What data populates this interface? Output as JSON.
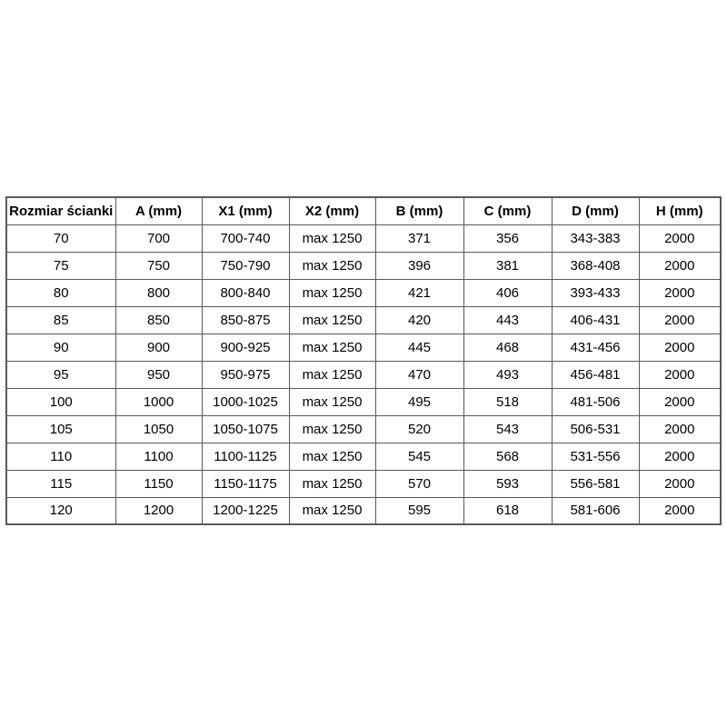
{
  "table": {
    "headers": [
      "Rozmiar ścianki",
      "A (mm)",
      "X1 (mm)",
      "X2 (mm)",
      "B (mm)",
      "C (mm)",
      "D (mm)",
      "H (mm)"
    ],
    "rows": [
      [
        "70",
        "700",
        "700-740",
        "max 1250",
        "371",
        "356",
        "343-383",
        "2000"
      ],
      [
        "75",
        "750",
        "750-790",
        "max 1250",
        "396",
        "381",
        "368-408",
        "2000"
      ],
      [
        "80",
        "800",
        "800-840",
        "max 1250",
        "421",
        "406",
        "393-433",
        "2000"
      ],
      [
        "85",
        "850",
        "850-875",
        "max 1250",
        "420",
        "443",
        "406-431",
        "2000"
      ],
      [
        "90",
        "900",
        "900-925",
        "max 1250",
        "445",
        "468",
        "431-456",
        "2000"
      ],
      [
        "95",
        "950",
        "950-975",
        "max 1250",
        "470",
        "493",
        "456-481",
        "2000"
      ],
      [
        "100",
        "1000",
        "1000-1025",
        "max 1250",
        "495",
        "518",
        "481-506",
        "2000"
      ],
      [
        "105",
        "1050",
        "1050-1075",
        "max 1250",
        "520",
        "543",
        "506-531",
        "2000"
      ],
      [
        "110",
        "1100",
        "1100-1125",
        "max 1250",
        "545",
        "568",
        "531-556",
        "2000"
      ],
      [
        "115",
        "1150",
        "1150-1175",
        "max 1250",
        "570",
        "593",
        "556-581",
        "2000"
      ],
      [
        "120",
        "1200",
        "1200-1225",
        "max 1250",
        "595",
        "618",
        "581-606",
        "2000"
      ]
    ]
  },
  "chart_data": {
    "type": "table",
    "title": "",
    "columns": [
      "Rozmiar ścianki",
      "A (mm)",
      "X1 (mm)",
      "X2 (mm)",
      "B (mm)",
      "C (mm)",
      "D (mm)",
      "H (mm)"
    ],
    "rows": [
      [
        "70",
        "700",
        "700-740",
        "max 1250",
        "371",
        "356",
        "343-383",
        "2000"
      ],
      [
        "75",
        "750",
        "750-790",
        "max 1250",
        "396",
        "381",
        "368-408",
        "2000"
      ],
      [
        "80",
        "800",
        "800-840",
        "max 1250",
        "421",
        "406",
        "393-433",
        "2000"
      ],
      [
        "85",
        "850",
        "850-875",
        "max 1250",
        "420",
        "443",
        "406-431",
        "2000"
      ],
      [
        "90",
        "900",
        "900-925",
        "max 1250",
        "445",
        "468",
        "431-456",
        "2000"
      ],
      [
        "95",
        "950",
        "950-975",
        "max 1250",
        "470",
        "493",
        "456-481",
        "2000"
      ],
      [
        "100",
        "1000",
        "1000-1025",
        "max 1250",
        "495",
        "518",
        "481-506",
        "2000"
      ],
      [
        "105",
        "1050",
        "1050-1075",
        "max 1250",
        "520",
        "543",
        "506-531",
        "2000"
      ],
      [
        "110",
        "1100",
        "1100-1125",
        "max 1250",
        "545",
        "568",
        "531-556",
        "2000"
      ],
      [
        "115",
        "1150",
        "1150-1175",
        "max 1250",
        "570",
        "593",
        "556-581",
        "2000"
      ],
      [
        "120",
        "1200",
        "1200-1225",
        "max 1250",
        "595",
        "618",
        "581-606",
        "2000"
      ]
    ],
    "grid": true,
    "legend_position": "none"
  },
  "colors": {
    "background": "#ffffff",
    "border": "#595959",
    "text": "#000000"
  }
}
